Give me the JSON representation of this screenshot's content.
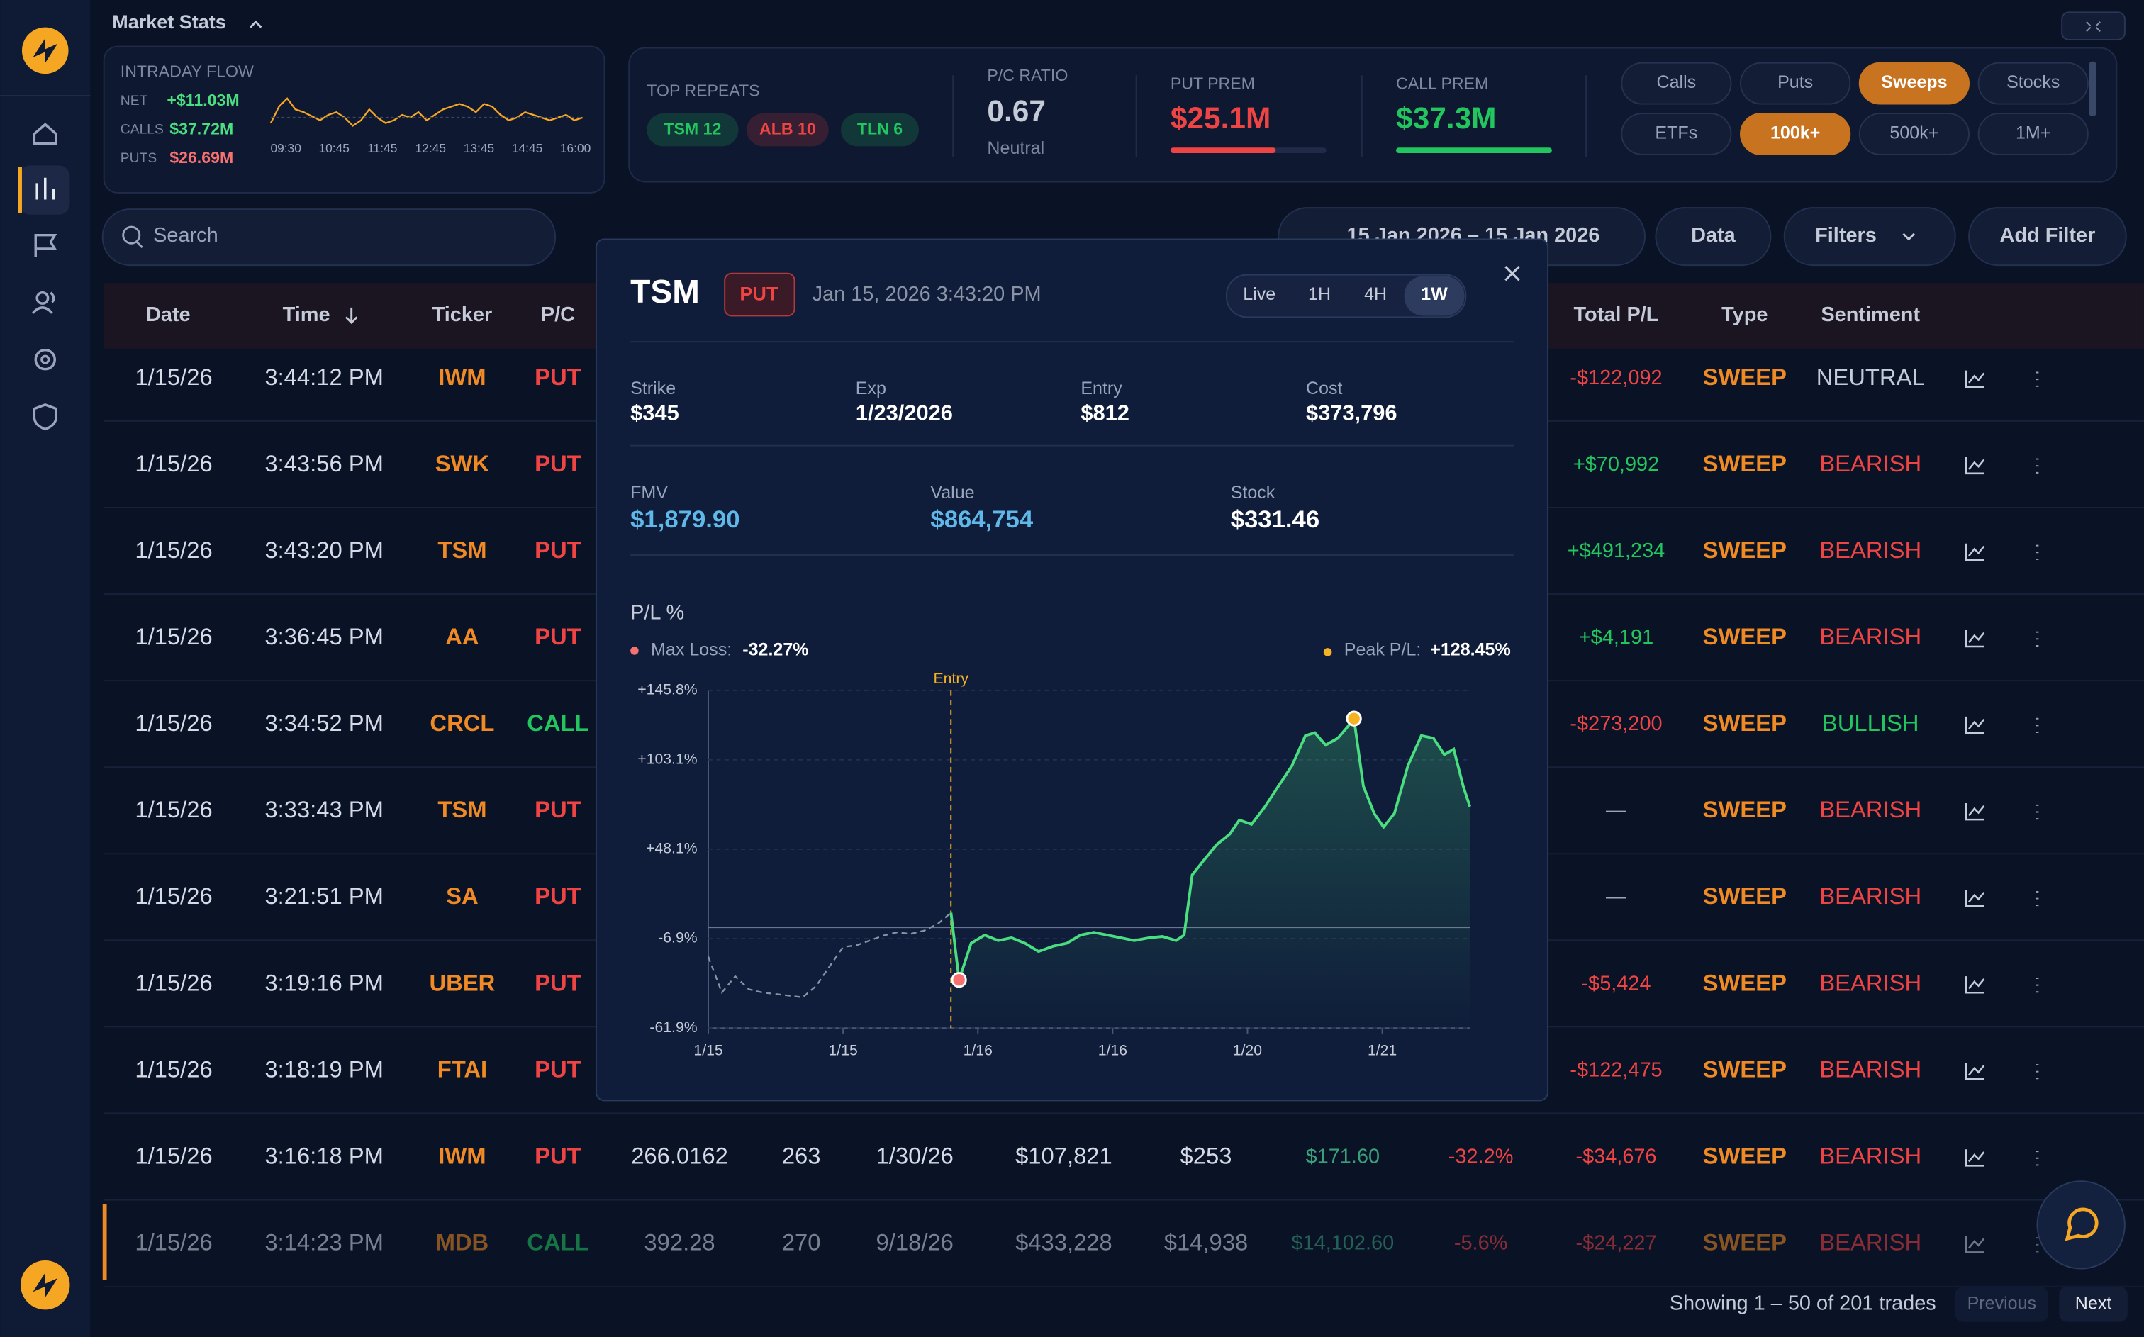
{
  "header": {
    "title": "Market Stats"
  },
  "intraday": {
    "title": "INTRADAY FLOW",
    "rows": [
      {
        "label": "NET",
        "value": "+$11.03M"
      },
      {
        "label": "CALLS",
        "value": "$37.72M"
      },
      {
        "label": "PUTS",
        "value": "$26.69M"
      }
    ],
    "times": [
      "09:30",
      "10:45",
      "11:45",
      "12:45",
      "13:45",
      "14:45",
      "16:00"
    ]
  },
  "stats": {
    "top_repeats": {
      "label": "TOP REPEATS",
      "chips": [
        {
          "label": "TSM 12",
          "color": "#22c55e"
        },
        {
          "label": "ALB 10",
          "color": "#ef4444"
        },
        {
          "label": "TLN 6",
          "color": "#22c55e"
        }
      ]
    },
    "pc_ratio": {
      "label": "P/C RATIO",
      "value": "0.67",
      "note": "Neutral"
    },
    "put_prem": {
      "label": "PUT PREM",
      "value": "$25.1M",
      "color": "#ef4444"
    },
    "call_prem": {
      "label": "CALL PREM",
      "value": "$37.3M",
      "color": "#22c55e"
    }
  },
  "filters": [
    {
      "label": "Calls",
      "active": false
    },
    {
      "label": "Puts",
      "active": false
    },
    {
      "label": "Sweeps",
      "active": true
    },
    {
      "label": "Stocks",
      "active": false
    },
    {
      "label": "ETFs",
      "active": false
    },
    {
      "label": "100k+",
      "active": true
    },
    {
      "label": "500k+",
      "active": false
    },
    {
      "label": "1M+",
      "active": false
    }
  ],
  "toolbar": {
    "search": "Search",
    "date_range": "15 Jan 2026 – 15 Jan 2026",
    "buttons": [
      "Data",
      "Filters",
      "Add Filter"
    ]
  },
  "table": {
    "columns": [
      "Date",
      "Time",
      "Ticker",
      "P/C",
      "Total P/L",
      "Type",
      "Sentiment"
    ],
    "rows": [
      {
        "date": "1/15/26",
        "time": "3:44:12 PM",
        "ticker": "IWM",
        "pc": "PUT",
        "total_pl": "-$122,092",
        "type": "SWEEP",
        "sentiment": "NEUTRAL"
      },
      {
        "date": "1/15/26",
        "time": "3:43:56 PM",
        "ticker": "SWK",
        "pc": "PUT",
        "total_pl": "+$70,992",
        "type": "SWEEP",
        "sentiment": "BEARISH"
      },
      {
        "date": "1/15/26",
        "time": "3:43:20 PM",
        "ticker": "TSM",
        "pc": "PUT",
        "total_pl": "+$491,234",
        "type": "SWEEP",
        "sentiment": "BEARISH"
      },
      {
        "date": "1/15/26",
        "time": "3:36:45 PM",
        "ticker": "AA",
        "pc": "PUT",
        "total_pl": "+$4,191",
        "type": "SWEEP",
        "sentiment": "BEARISH"
      },
      {
        "date": "1/15/26",
        "time": "3:34:52 PM",
        "ticker": "CRCL",
        "pc": "CALL",
        "total_pl": "-$273,200",
        "type": "SWEEP",
        "sentiment": "BULLISH"
      },
      {
        "date": "1/15/26",
        "time": "3:33:43 PM",
        "ticker": "TSM",
        "pc": "PUT",
        "total_pl": "—",
        "type": "SWEEP",
        "sentiment": "BEARISH"
      },
      {
        "date": "1/15/26",
        "time": "3:21:51 PM",
        "ticker": "SA",
        "pc": "PUT",
        "total_pl": "—",
        "type": "SWEEP",
        "sentiment": "BEARISH"
      },
      {
        "date": "1/15/26",
        "time": "3:19:16 PM",
        "ticker": "UBER",
        "pc": "PUT",
        "total_pl": "-$5,424",
        "type": "SWEEP",
        "sentiment": "BEARISH"
      },
      {
        "date": "1/15/26",
        "time": "3:18:19 PM",
        "ticker": "FTAI",
        "pc": "PUT",
        "total_pl": "-$122,475",
        "type": "SWEEP",
        "sentiment": "BEARISH"
      },
      {
        "date": "1/15/26",
        "time": "3:16:18 PM",
        "ticker": "IWM",
        "pc": "PUT",
        "details": [
          "266.0162",
          "263",
          "1/30/26",
          "$107,821",
          "$253",
          "$171.60",
          "-32.2%"
        ],
        "total_pl": "-$34,676",
        "type": "SWEEP",
        "sentiment": "BEARISH"
      },
      {
        "date": "1/15/26",
        "time": "3:14:23 PM",
        "ticker": "MDB",
        "pc": "CALL",
        "details": [
          "392.28",
          "270",
          "9/18/26",
          "$433,228",
          "$14,938",
          "$14,102.60",
          "-5.6%"
        ],
        "total_pl": "-$24,227",
        "type": "SWEEP",
        "sentiment": "BEARISH"
      }
    ]
  },
  "pagination": {
    "summary": "Showing 1 – 50 of 201 trades",
    "previous": "Previous",
    "next": "Next"
  },
  "modal": {
    "ticker": "TSM",
    "side": "PUT",
    "timestamp": "Jan 15, 2026 3:43:20 PM",
    "ranges": [
      "Live",
      "1H",
      "4H",
      "1W"
    ],
    "active_range": 3,
    "fields": [
      {
        "label": "Strike",
        "value": "$345"
      },
      {
        "label": "Exp",
        "value": "1/23/2026"
      },
      {
        "label": "Entry",
        "value": "$812"
      },
      {
        "label": "Cost",
        "value": "$373,796"
      }
    ],
    "fields2": [
      {
        "label": "FMV",
        "value": "$1,879.90",
        "color": "#5fb8e8"
      },
      {
        "label": "Value",
        "value": "$864,754",
        "color": "#5fb8e8"
      },
      {
        "label": "Stock",
        "value": "$331.46",
        "color": "#ffffff"
      }
    ],
    "chart": {
      "type": "line",
      "title": "P/L %",
      "max_loss": {
        "label": "Max Loss:",
        "value": "-32.27%"
      },
      "peak": {
        "label": "Peak P/L:",
        "value": "+128.45%"
      },
      "entry_label": "Entry",
      "entry_x": 18,
      "xlim": [
        0,
        56.5
      ],
      "xticks": [
        {
          "value": 0,
          "label": "1/15"
        },
        {
          "value": 10,
          "label": "1/15"
        },
        {
          "value": 20,
          "label": "1/16"
        },
        {
          "value": 30,
          "label": "1/16"
        },
        {
          "value": 40,
          "label": "1/20"
        },
        {
          "value": 50,
          "label": "1/21"
        }
      ],
      "ylim": [
        -61.9,
        145.8
      ],
      "yticks": [
        {
          "value": 145.8,
          "label": "+145.8%"
        },
        {
          "value": 103.1,
          "label": "+103.1%"
        },
        {
          "value": 48.1,
          "label": "+48.1%"
        },
        {
          "value": -6.9,
          "label": "-6.9%"
        },
        {
          "value": -61.9,
          "label": "-61.9%"
        }
      ],
      "grid": true,
      "series": [
        {
          "color": "#8a93a6",
          "dashed": true,
          "x": [
            0,
            1,
            2,
            3,
            4,
            5,
            6,
            7,
            8,
            9,
            10,
            11,
            12,
            13,
            14,
            15,
            16,
            17,
            18
          ],
          "values": [
            -18,
            -40,
            -30,
            -38,
            -40,
            -41,
            -42,
            -43,
            -36,
            -24,
            -12,
            -11,
            -8,
            -5,
            -3,
            -4,
            -2,
            2,
            9
          ]
        },
        {
          "color": "#4ade80",
          "dashed": false,
          "x": [
            18,
            18.6,
            19.5,
            20.5,
            21.5,
            22.5,
            23.5,
            24.5,
            25.6,
            26.6,
            27.6,
            28.6,
            29.6,
            30.6,
            31.6,
            32.7,
            33.7,
            34.7,
            35.3,
            35.9,
            36.7,
            37.7,
            38.7,
            39.4,
            40.3,
            41.3,
            42.3,
            43.3,
            44.3,
            45,
            45.8,
            46.7,
            47.4,
            47.9,
            48.6,
            49.4,
            50.1,
            50.9,
            51.9,
            52.9,
            53.8,
            54.6,
            55.3,
            56,
            56.5
          ],
          "values": [
            9,
            -32.27,
            -9.8,
            -4.7,
            -8.1,
            -6.4,
            -9.8,
            -14.8,
            -11.5,
            -9.8,
            -4.7,
            -3,
            -4.7,
            -6.4,
            -8.1,
            -6.4,
            -5.6,
            -8.1,
            -4.7,
            32.3,
            40.7,
            50.8,
            57.5,
            66,
            63.4,
            74.3,
            86.9,
            99.5,
            118,
            119.7,
            112.2,
            116.4,
            123.1,
            128.45,
            86.9,
            70.1,
            61.7,
            70.1,
            99.5,
            118,
            116.4,
            106.3,
            109.6,
            86.9,
            74.3
          ]
        }
      ]
    }
  }
}
